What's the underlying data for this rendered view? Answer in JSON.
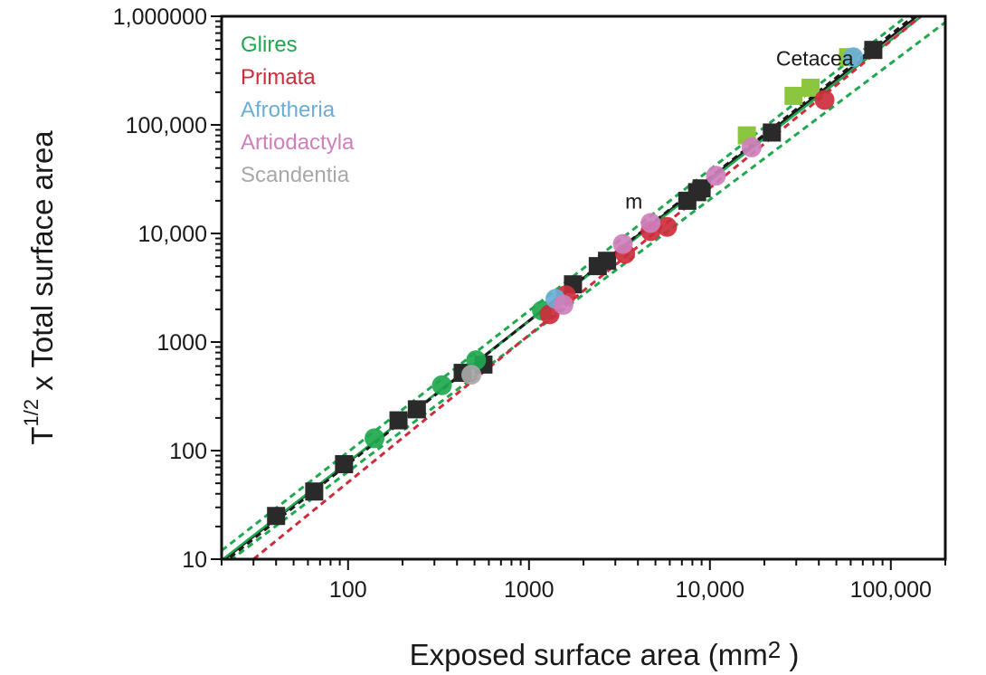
{
  "chart_data": {
    "type": "scatter",
    "title": "",
    "xlabel": "Exposed surface area (mm",
    "xlabel_sup": "2",
    "xlabel_end": " )",
    "ylabel_prefix": "T",
    "ylabel_sup": "1/2",
    "ylabel": " x Total surface area",
    "xscale": "log",
    "yscale": "log",
    "xlim": [
      20,
      200000
    ],
    "ylim": [
      10,
      1000000
    ],
    "xticks": [
      {
        "value": 100,
        "label": "100"
      },
      {
        "value": 1000,
        "label": "1000"
      },
      {
        "value": 10000,
        "label": "10,000"
      },
      {
        "value": 100000,
        "label": "100,000"
      }
    ],
    "yticks": [
      {
        "value": 10,
        "label": "10"
      },
      {
        "value": 100,
        "label": "100"
      },
      {
        "value": 1000,
        "label": "1000"
      },
      {
        "value": 10000,
        "label": "10,000"
      },
      {
        "value": 100000,
        "label": "100,000"
      },
      {
        "value": 1000000,
        "label": "1,000000"
      }
    ],
    "grid": false,
    "legend_position": "top-left",
    "legend": [
      {
        "label": "Glires",
        "color": "#1fa84f"
      },
      {
        "label": "Primata",
        "color": "#cc2c3c"
      },
      {
        "label": "Afrotheria",
        "color": "#6aaed6"
      },
      {
        "label": "Artiodactyla",
        "color": "#cf7fbc"
      },
      {
        "label": "Scandentia",
        "color": "#a8a8a8"
      }
    ],
    "annotations": [
      {
        "text": "Cetacea",
        "color": "#8cc63f",
        "x": 38000,
        "y": 350000
      },
      {
        "text": "m",
        "color": "#1a1a1a",
        "x": 3800,
        "y": 17000
      }
    ],
    "series": [
      {
        "name": "Glires",
        "marker": "circle",
        "color": "#1fa84f",
        "points": [
          [
            140,
            130
          ],
          [
            330,
            400
          ],
          [
            510,
            680
          ],
          [
            1180,
            1950
          ]
        ]
      },
      {
        "name": "Primata",
        "marker": "circle",
        "color": "#cc2c3c",
        "points": [
          [
            1300,
            1800
          ],
          [
            1600,
            2700
          ],
          [
            3400,
            6500
          ],
          [
            4700,
            10500
          ],
          [
            5800,
            11500
          ],
          [
            43000,
            170000
          ]
        ]
      },
      {
        "name": "Afrotheria",
        "marker": "circle",
        "color": "#6aaed6",
        "points": [
          [
            1400,
            2500
          ],
          [
            62000,
            420000
          ]
        ]
      },
      {
        "name": "Artiodactyla",
        "marker": "circle",
        "color": "#cf7fbc",
        "points": [
          [
            1550,
            2200
          ],
          [
            3300,
            8000
          ],
          [
            4700,
            12500
          ],
          [
            10800,
            34000
          ],
          [
            17000,
            62000
          ]
        ]
      },
      {
        "name": "Scandentia",
        "marker": "circle",
        "color": "#a8a8a8",
        "points": [
          [
            480,
            500
          ]
        ]
      },
      {
        "name": "",
        "marker": "square",
        "color": "#2a2a2a",
        "points": [
          [
            40,
            25
          ],
          [
            65,
            42
          ],
          [
            95,
            75
          ],
          [
            190,
            190
          ],
          [
            240,
            240
          ],
          [
            430,
            520
          ],
          [
            560,
            620
          ],
          [
            1750,
            3400
          ],
          [
            2400,
            5000
          ],
          [
            2700,
            5600
          ],
          [
            7500,
            20000
          ],
          [
            8500,
            24000
          ],
          [
            9000,
            26000
          ],
          [
            22000,
            85000
          ],
          [
            80000,
            490000
          ]
        ]
      },
      {
        "name": "Cetacea",
        "marker": "square",
        "color": "#8cc63f",
        "points": [
          [
            16000,
            80000
          ],
          [
            29000,
            185000
          ],
          [
            36000,
            220000
          ],
          [
            58000,
            420000
          ]
        ]
      }
    ],
    "fit_lines": [
      {
        "color": "#1a1a1a",
        "style": "solid",
        "from": [
          20,
          9.5
        ],
        "to": [
          200000,
          1600000
        ]
      },
      {
        "color": "#1fa84f",
        "style": "solid",
        "from": [
          20,
          9.8
        ],
        "to": [
          200000,
          1480000
        ]
      },
      {
        "color": "#1fa84f",
        "style": "dashed",
        "from": [
          20,
          12
        ],
        "to": [
          200000,
          1900000
        ]
      },
      {
        "color": "#1fa84f",
        "style": "dashed",
        "from": [
          20,
          8.5
        ],
        "to": [
          200000,
          880000
        ]
      },
      {
        "color": "#cc2c3c",
        "style": "dashed",
        "from": [
          30,
          10
        ],
        "to": [
          200000,
          1520000
        ]
      },
      {
        "color": "#1a1a1a",
        "style": "dashed",
        "from": [
          20,
          9
        ],
        "to": [
          200000,
          1700000
        ]
      }
    ]
  }
}
